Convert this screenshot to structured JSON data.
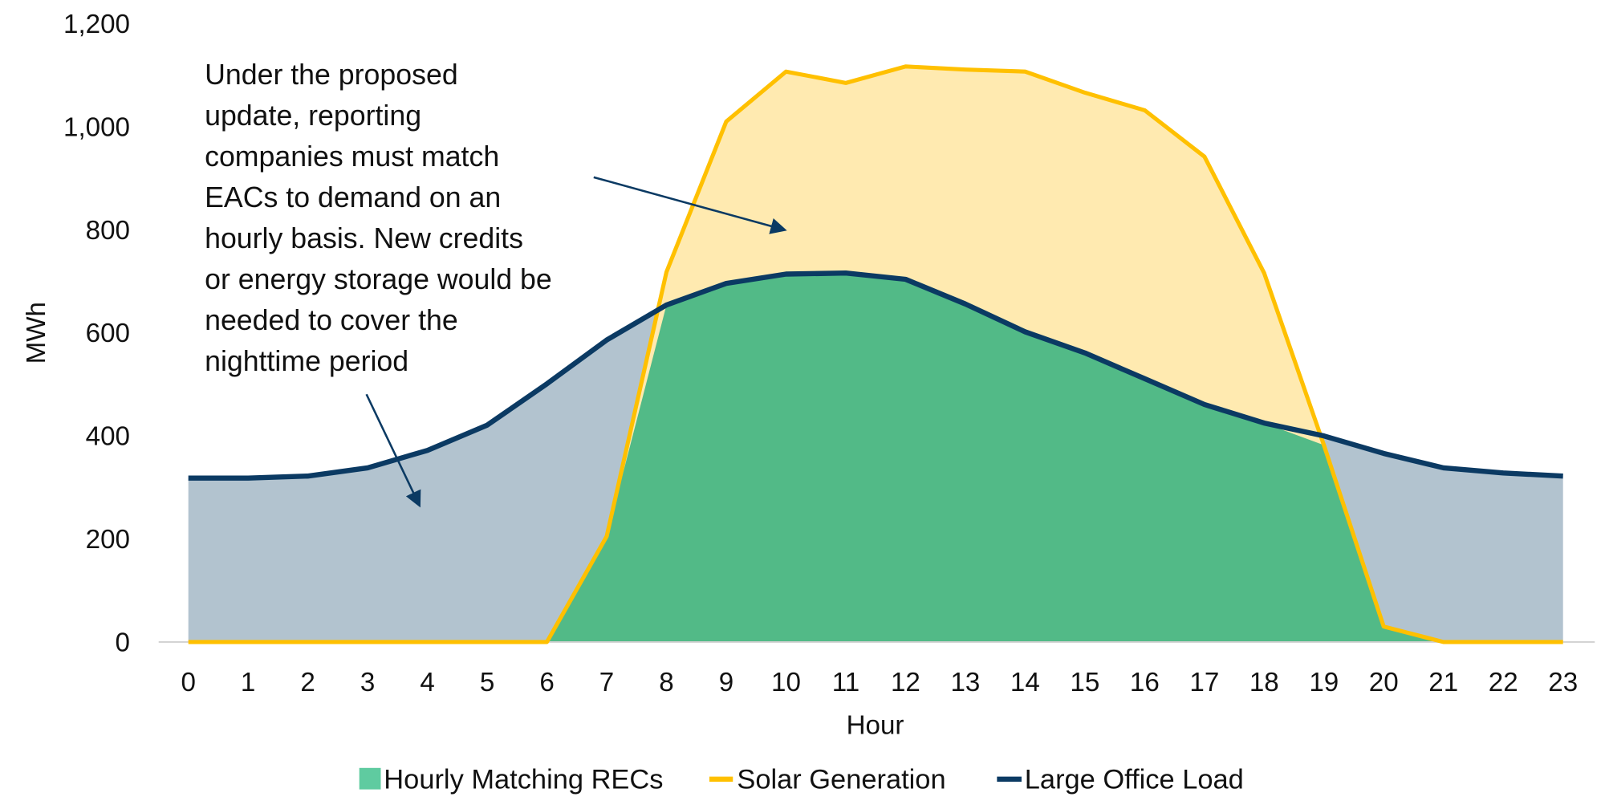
{
  "chart_data": {
    "type": "area",
    "xlabel": "Hour",
    "ylabel": "MWh",
    "ylim": [
      0,
      1200
    ],
    "yticks": [
      "0",
      "200",
      "400",
      "600",
      "800",
      "1,000",
      "1,200"
    ],
    "x": [
      0,
      1,
      2,
      3,
      4,
      5,
      6,
      7,
      8,
      9,
      10,
      11,
      12,
      13,
      14,
      15,
      16,
      17,
      18,
      19,
      20,
      21,
      22,
      23
    ],
    "grid": false,
    "legend": "bottom",
    "series": [
      {
        "name": "Hourly Matching RECs",
        "kind": "area",
        "color": "#52BA87",
        "legend_color": "#5FCBA0",
        "values": [
          0,
          0,
          0,
          0,
          0,
          0,
          0,
          205,
          654,
          696,
          714,
          716,
          704,
          656,
          602,
          561,
          511,
          461,
          425,
          382,
          30,
          0,
          0,
          0
        ]
      },
      {
        "name": "Solar Generation",
        "kind": "line",
        "color": "#FFC000",
        "fill": "#FFEAB0",
        "values": [
          0,
          0,
          0,
          0,
          0,
          0,
          0,
          205,
          718,
          1010,
          1107,
          1085,
          1117,
          1111,
          1107,
          1066,
          1032,
          942,
          716,
          382,
          30,
          0,
          0,
          0
        ]
      },
      {
        "name": "Large Office Load",
        "kind": "line",
        "color": "#0B3A63",
        "fill": "#B2C3CF",
        "values": [
          318,
          318,
          322,
          338,
          372,
          421,
          501,
          586,
          654,
          696,
          714,
          716,
          704,
          656,
          602,
          561,
          511,
          461,
          425,
          400,
          366,
          338,
          328,
          322
        ]
      }
    ],
    "annotation": {
      "lines": [
        "Under the proposed",
        "update, reporting",
        "companies must match",
        "EACs to demand on an",
        "hourly basis. New credits",
        "or energy storage would be",
        "needed to cover the",
        "nighttime period"
      ]
    }
  }
}
